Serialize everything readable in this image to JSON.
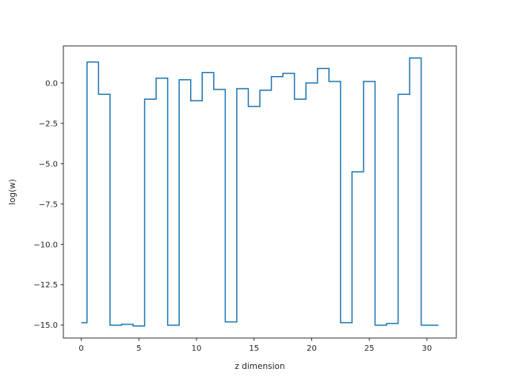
{
  "chart_data": {
    "type": "line",
    "drawstyle": "steps-mid",
    "xlabel": "z dimension",
    "ylabel": "log(w)",
    "xlim": [
      -1.55,
      32.55
    ],
    "ylim": [
      -15.8,
      2.3
    ],
    "xticks": [
      0,
      5,
      10,
      15,
      20,
      25,
      30
    ],
    "xtick_labels": [
      "0",
      "5",
      "10",
      "15",
      "20",
      "25",
      "30"
    ],
    "yticks": [
      0.0,
      -2.5,
      -5.0,
      -7.5,
      -10.0,
      -12.5,
      -15.0
    ],
    "ytick_labels": [
      "0.0",
      "−2.5",
      "−5.0",
      "−7.5",
      "−10.0",
      "−12.5",
      "−15.0"
    ],
    "grid": false,
    "legend": "none",
    "series": [
      {
        "color": "#1f77b4",
        "x": [
          0,
          1,
          2,
          3,
          4,
          5,
          6,
          7,
          8,
          9,
          10,
          11,
          12,
          13,
          14,
          15,
          16,
          17,
          18,
          19,
          20,
          21,
          22,
          23,
          24,
          25,
          26,
          27,
          28,
          29,
          30,
          31
        ],
        "y": [
          -14.85,
          1.3,
          -0.7,
          -15.0,
          -14.95,
          -15.05,
          -1.0,
          0.3,
          -15.0,
          0.2,
          -1.1,
          0.65,
          -0.4,
          -14.8,
          -0.35,
          -1.45,
          -0.45,
          0.4,
          0.6,
          -1.0,
          0.0,
          0.9,
          0.1,
          -14.85,
          -5.5,
          0.1,
          -15.0,
          -14.9,
          -0.7,
          1.55,
          -15.0,
          -15.0
        ]
      }
    ]
  }
}
